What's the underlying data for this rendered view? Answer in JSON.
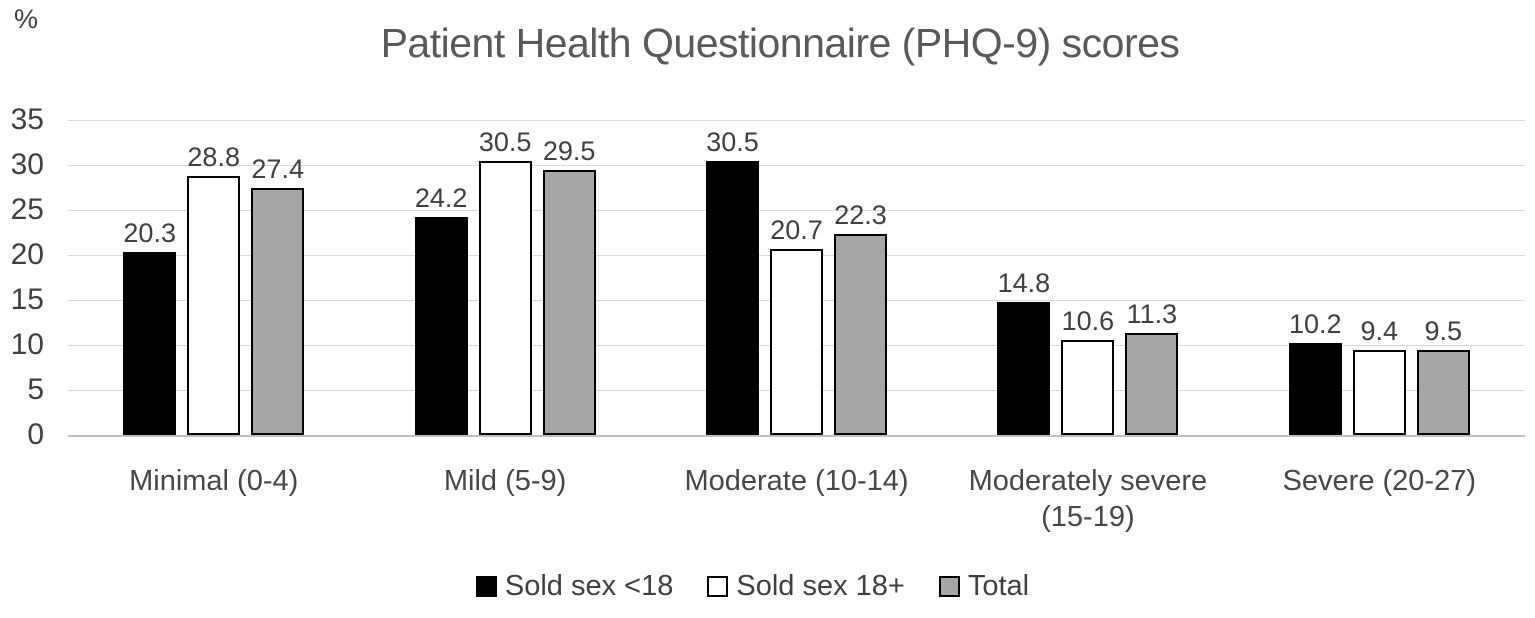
{
  "percent_label": "%",
  "chart_data": {
    "type": "bar",
    "title": "Patient Health Questionnaire (PHQ-9) scores",
    "xlabel": "",
    "ylabel": "%",
    "ylim": [
      0,
      35
    ],
    "yticks": [
      0,
      5,
      10,
      15,
      20,
      25,
      30,
      35
    ],
    "grid": true,
    "legend_position": "bottom",
    "categories": [
      "Minimal (0-4)",
      "Mild (5-9)",
      "Moderate (10-14)",
      "Moderately severe (15-19)",
      "Severe (20-27)"
    ],
    "series": [
      {
        "name": "Sold sex <18",
        "fill": "#000000",
        "border": "#000000",
        "values": [
          20.3,
          24.2,
          30.5,
          14.8,
          10.2
        ]
      },
      {
        "name": "Sold sex 18+",
        "fill": "#ffffff",
        "border": "#000000",
        "values": [
          28.8,
          30.5,
          20.7,
          10.6,
          9.4
        ]
      },
      {
        "name": "Total",
        "fill": "#a6a6a6",
        "border": "#000000",
        "values": [
          27.4,
          29.5,
          22.3,
          11.3,
          9.5
        ]
      }
    ],
    "colors": {
      "gridline": "#d9d9d9",
      "axis_text": "#404040",
      "title_text": "#595959"
    }
  }
}
